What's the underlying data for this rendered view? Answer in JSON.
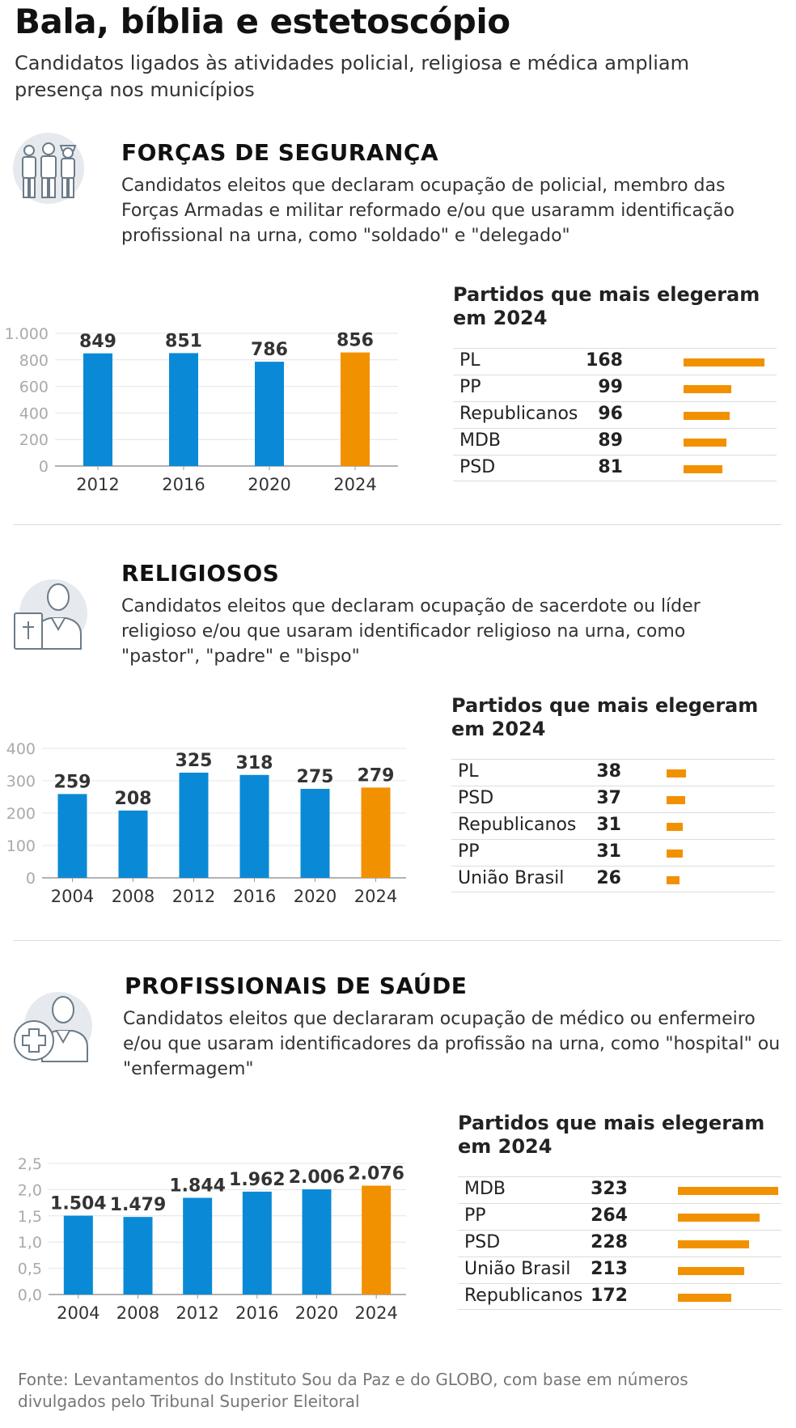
{
  "header": {
    "title": "Bala, bíblia e estetoscópio",
    "subtitle": "Candidatos ligados às atividades policial, religiosa e médica ampliam presença nos municípios"
  },
  "colors": {
    "blue": "#0a8ad6",
    "orange": "#f29100",
    "grid": "#e4e4e4",
    "axis": "#999999",
    "icon_bg": "#e6eaee",
    "icon_line": "#6b7b88"
  },
  "sections": [
    {
      "id": "seguranca",
      "icon": "police-officers-icon",
      "title": "FORÇAS DE SEGURANÇA",
      "description": "Candidatos eleitos que declaram ocupação de policial, membro das Forças Armadas e militar reformado e/ou que usaramm identificação profissional na urna, como \"soldado\" e \"delegado\"",
      "ranking_title": "Partidos que mais elegeram em 2024",
      "ranking": [
        {
          "party": "PL",
          "value": "168",
          "num": 168
        },
        {
          "party": "PP",
          "value": "99",
          "num": 99
        },
        {
          "party": "Republicanos",
          "value": "96",
          "num": 96
        },
        {
          "party": "MDB",
          "value": "89",
          "num": 89
        },
        {
          "party": "PSD",
          "value": "81",
          "num": 81
        }
      ]
    },
    {
      "id": "religiosos",
      "icon": "religious-leader-icon",
      "title": "RELIGIOSOS",
      "description": "Candidatos eleitos que declaram ocupação de sacerdote ou líder religioso e/ou que usaram identificador religioso na urna, como \"pastor\", \"padre\" e \"bispo\"",
      "ranking_title": "Partidos que mais elegeram em 2024",
      "ranking": [
        {
          "party": "PL",
          "value": "38",
          "num": 38
        },
        {
          "party": "PSD",
          "value": "37",
          "num": 37
        },
        {
          "party": "Republicanos",
          "value": "31",
          "num": 31
        },
        {
          "party": "PP",
          "value": "31",
          "num": 31
        },
        {
          "party": "União Brasil",
          "value": "26",
          "num": 26
        }
      ]
    },
    {
      "id": "saude",
      "icon": "health-professional-icon",
      "title": "PROFISSIONAIS DE SAÚDE",
      "description": "Candidatos eleitos que declararam ocupação de médico ou enfermeiro e/ou que usaram identificadores da profissão na urna, como \"hospital\" ou \"enfermagem\"",
      "ranking_title": "Partidos que mais elegeram em 2024",
      "ranking": [
        {
          "party": "MDB",
          "value": "323",
          "num": 323
        },
        {
          "party": "PP",
          "value": "264",
          "num": 264
        },
        {
          "party": "PSD",
          "value": "228",
          "num": 228
        },
        {
          "party": "União Brasil",
          "value": "213",
          "num": 213
        },
        {
          "party": "Republicanos",
          "value": "172",
          "num": 172
        }
      ]
    }
  ],
  "chart_data": [
    {
      "type": "bar",
      "title": "FORÇAS DE SEGURANÇA",
      "categories": [
        "2012",
        "2016",
        "2020",
        "2024"
      ],
      "values": [
        849,
        851,
        786,
        856
      ],
      "labels": [
        "849",
        "851",
        "786",
        "856"
      ],
      "yticks": [
        0,
        200,
        400,
        600,
        800,
        1000
      ],
      "yticklabels": [
        "0",
        "200",
        "400",
        "600",
        "800",
        "1.000"
      ],
      "ylim": [
        0,
        1000
      ],
      "highlight": "2024"
    },
    {
      "type": "bar",
      "title": "RELIGIOSOS",
      "categories": [
        "2004",
        "2008",
        "2012",
        "2016",
        "2020",
        "2024"
      ],
      "values": [
        259,
        208,
        325,
        318,
        275,
        279
      ],
      "labels": [
        "259",
        "208",
        "325",
        "318",
        "275",
        "279"
      ],
      "yticks": [
        0,
        100,
        200,
        300,
        400
      ],
      "yticklabels": [
        "0",
        "100",
        "200",
        "300",
        "400"
      ],
      "ylim": [
        0,
        400
      ],
      "highlight": "2024"
    },
    {
      "type": "bar",
      "title": "PROFISSIONAIS DE SAÚDE",
      "categories": [
        "2004",
        "2008",
        "2012",
        "2016",
        "2020",
        "2024"
      ],
      "values": [
        1504,
        1479,
        1844,
        1962,
        2006,
        2076
      ],
      "labels": [
        "1.504",
        "1.479",
        "1.844",
        "1.962",
        "2.006",
        "2.076"
      ],
      "yticks": [
        0,
        500,
        1000,
        1500,
        2000,
        2500
      ],
      "yticklabels": [
        "0,0",
        "0,5",
        "1,0",
        "1,5",
        "2,0",
        "2,5"
      ],
      "ylim": [
        0,
        2500
      ],
      "highlight": "2024"
    }
  ],
  "footer": {
    "source": "Fonte: Levantamentos do Instituto Sou da Paz e do GLOBO, com base em números divulgados pelo Tribunal Superior Eleitoral"
  }
}
